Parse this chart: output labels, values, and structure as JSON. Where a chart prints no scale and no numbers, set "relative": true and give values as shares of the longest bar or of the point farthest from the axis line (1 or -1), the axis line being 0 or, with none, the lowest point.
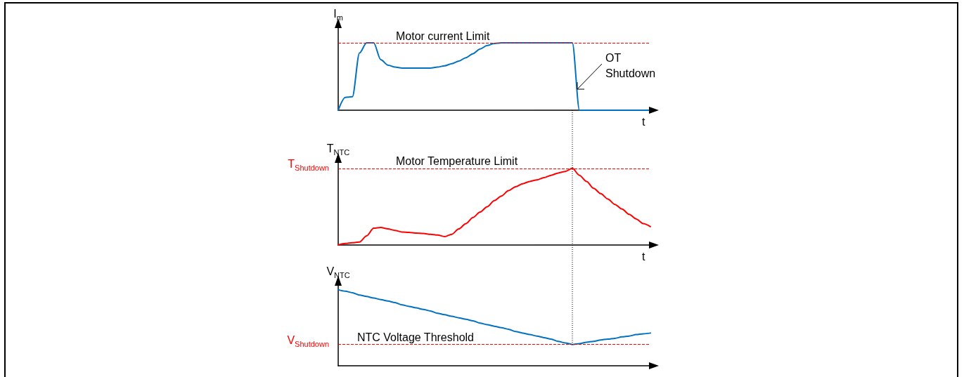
{
  "chart_data": [
    {
      "type": "line",
      "relative": true,
      "ylabel": "I$_{m}$",
      "xlabel": "t",
      "marker": "none",
      "line_style": "solid",
      "categories": [
        null,
        null,
        null,
        null,
        null,
        null,
        null,
        null,
        null,
        null,
        null,
        null,
        null,
        null,
        null,
        null,
        null,
        null,
        null,
        null,
        null,
        null,
        null,
        null,
        null,
        null,
        null,
        null,
        null,
        null,
        null,
        null,
        null,
        null,
        null,
        null,
        null,
        null,
        null,
        null,
        null,
        null,
        null,
        null,
        null
      ],
      "series": [
        {
          "color": "#0070c0",
          "values": [
            0,
            0.19,
            0.2,
            0.85,
            1,
            1,
            0.75,
            0.67,
            0.64,
            0.625,
            0.625,
            0.625,
            0.625,
            0.625,
            0.64,
            0.66,
            0.69,
            0.73,
            0.78,
            0.84,
            0.91,
            0.96,
            0.99,
            1,
            1,
            1,
            1,
            1,
            1,
            1,
            1,
            1,
            1,
            1,
            0,
            0,
            0,
            0,
            0,
            0,
            0,
            0,
            0,
            0,
            0
          ]
        }
      ],
      "ref_lines": [
        {
          "axis": "y",
          "value": 1,
          "label": "Motor current Limit",
          "color": "#ff0000",
          "line_style": "dashed"
        }
      ],
      "annotations": [
        "OT Shutdown"
      ]
    },
    {
      "type": "line",
      "relative": true,
      "ylabel": "T$_{NTC}$",
      "xlabel": "t",
      "marker": "none",
      "line_style": "solid",
      "categories": [
        null,
        null,
        null,
        null,
        null,
        null,
        null,
        null,
        null,
        null,
        null,
        null,
        null,
        null,
        null,
        null,
        null,
        null,
        null,
        null,
        null,
        null,
        null,
        null,
        null,
        null,
        null,
        null,
        null,
        null,
        null,
        null,
        null,
        null,
        null,
        null,
        null,
        null,
        null,
        null,
        null,
        null,
        null,
        null,
        null
      ],
      "series": [
        {
          "color": "#ff0000",
          "values": [
            0,
            0.02,
            0.03,
            0.04,
            0.12,
            0.22,
            0.23,
            0.21,
            0.19,
            0.17,
            0.165,
            0.155,
            0.15,
            0.14,
            0.13,
            0.11,
            0.14,
            0.21,
            0.28,
            0.36,
            0.43,
            0.5,
            0.58,
            0.64,
            0.71,
            0.76,
            0.8,
            0.83,
            0.85,
            0.88,
            0.91,
            0.94,
            0.96,
            1,
            0.91,
            0.83,
            0.74,
            0.67,
            0.6,
            0.53,
            0.47,
            0.4,
            0.34,
            0.28,
            0.24
          ]
        }
      ],
      "ref_lines": [
        {
          "axis": "y",
          "value": 1,
          "label": "Motor Temperature Limit",
          "color": "#ff0000",
          "line_style": "dashed"
        }
      ],
      "annotations": [
        "T$_{Shutdown}$"
      ]
    },
    {
      "type": "line",
      "relative": true,
      "ylabel": "V$_{NTC}$",
      "marker": "none",
      "line_style": "solid",
      "categories": [
        null,
        null,
        null,
        null,
        null,
        null,
        null,
        null,
        null,
        null,
        null,
        null,
        null,
        null,
        null,
        null,
        null,
        null,
        null,
        null,
        null,
        null,
        null,
        null,
        null,
        null,
        null,
        null,
        null,
        null,
        null,
        null,
        null,
        null,
        null,
        null,
        null,
        null,
        null,
        null,
        null,
        null,
        null,
        null,
        null
      ],
      "series": [
        {
          "color": "#0070c0",
          "values": [
            1,
            0.98,
            0.96,
            0.93,
            0.91,
            0.89,
            0.87,
            0.85,
            0.83,
            0.8,
            0.78,
            0.76,
            0.74,
            0.72,
            0.69,
            0.67,
            0.65,
            0.63,
            0.61,
            0.59,
            0.56,
            0.54,
            0.52,
            0.5,
            0.48,
            0.45,
            0.43,
            0.41,
            0.39,
            0.37,
            0.35,
            0.32,
            0.3,
            0.28,
            0.29,
            0.31,
            0.32,
            0.34,
            0.35,
            0.36,
            0.38,
            0.39,
            0.41,
            0.42,
            0.43
          ]
        }
      ],
      "ref_lines": [
        {
          "axis": "y",
          "value": 0.28,
          "label": "NTC Voltage Threshold",
          "color": "#ff0000",
          "line_style": "dashed"
        }
      ],
      "annotations": [
        "V$_{Shutdown}$"
      ]
    }
  ]
}
